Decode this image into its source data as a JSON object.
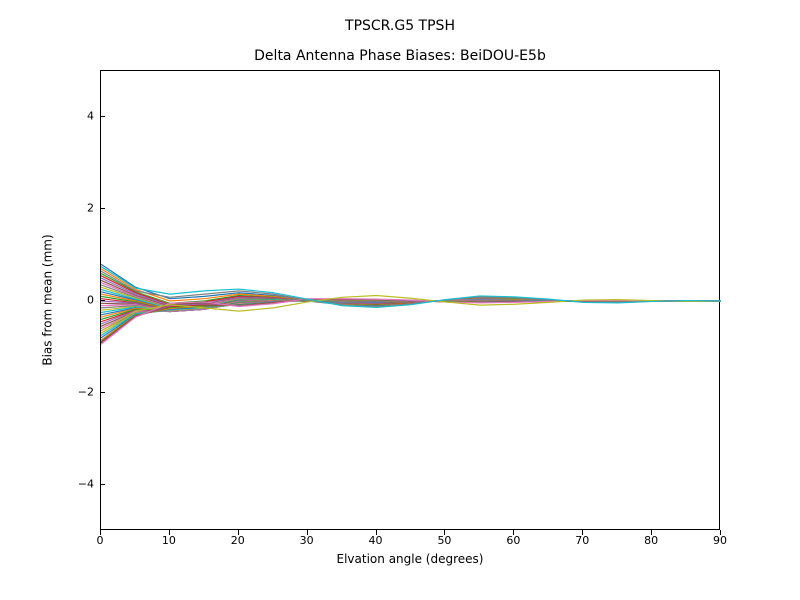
{
  "suptitle": "TPSCR.G5        TPSH",
  "chart": {
    "type": "line",
    "title": "Delta Antenna Phase Biases: BeiDOU-E5b",
    "xlabel": "Elvation angle (degrees)",
    "ylabel": "Bias from mean (mm)",
    "xlim": [
      0,
      90
    ],
    "ylim": [
      -5,
      5
    ],
    "xticks": [
      0,
      10,
      20,
      30,
      40,
      50,
      60,
      70,
      80,
      90
    ],
    "yticks": [
      -4,
      -2,
      0,
      2,
      4
    ],
    "background_color": "#ffffff",
    "border_color": "#000000",
    "title_fontsize": 14,
    "label_fontsize": 12,
    "tick_fontsize": 11,
    "line_width": 1.2,
    "x_values": [
      0,
      5,
      10,
      15,
      20,
      25,
      30,
      35,
      40,
      45,
      50,
      55,
      60,
      65,
      70,
      75,
      80,
      85,
      90
    ],
    "series_colors": [
      "#1f77b4",
      "#ff7f0e",
      "#2ca02c",
      "#d62728",
      "#9467bd",
      "#8c564b",
      "#e377c2",
      "#7f7f7f",
      "#bcbd22",
      "#17becf",
      "#1f77b4",
      "#ff7f0e",
      "#2ca02c",
      "#d62728",
      "#9467bd",
      "#8c564b",
      "#e377c2",
      "#7f7f7f",
      "#bcbd22",
      "#17becf",
      "#1f77b4",
      "#ff7f0e",
      "#2ca02c",
      "#d62728",
      "#9467bd",
      "#8c564b",
      "#e377c2",
      "#7f7f7f",
      "#bcbd22",
      "#17becf",
      "#1f77b4",
      "#ff7f0e",
      "#2ca02c",
      "#d62728",
      "#9467bd",
      "#8c564b",
      "#e377c2",
      "#7f7f7f",
      "#bcbd22",
      "#17becf"
    ],
    "series": [
      [
        0.8,
        0.3,
        0.05,
        0.1,
        0.18,
        0.12,
        0.0,
        -0.08,
        -0.1,
        -0.05,
        0.02,
        0.08,
        0.06,
        0.02,
        -0.02,
        -0.03,
        0.0,
        0.01,
        0.0
      ],
      [
        0.7,
        0.25,
        0.0,
        0.05,
        0.15,
        0.1,
        0.0,
        -0.06,
        -0.08,
        -0.04,
        0.02,
        0.06,
        0.05,
        0.02,
        -0.01,
        -0.02,
        0.0,
        0.01,
        0.0
      ],
      [
        0.6,
        0.2,
        -0.05,
        0.0,
        0.12,
        0.08,
        0.0,
        -0.05,
        -0.07,
        -0.03,
        0.01,
        0.05,
        0.04,
        0.01,
        -0.01,
        -0.02,
        0.0,
        0.0,
        0.0
      ],
      [
        0.55,
        0.18,
        -0.08,
        -0.02,
        0.1,
        0.07,
        0.0,
        -0.04,
        -0.06,
        -0.03,
        0.01,
        0.04,
        0.03,
        0.01,
        -0.01,
        -0.01,
        0.0,
        0.0,
        0.0
      ],
      [
        0.5,
        0.15,
        -0.1,
        -0.05,
        0.08,
        0.06,
        0.0,
        -0.04,
        -0.05,
        -0.02,
        0.01,
        0.04,
        0.03,
        0.01,
        -0.01,
        -0.01,
        0.0,
        0.0,
        0.0
      ],
      [
        0.45,
        0.12,
        -0.12,
        -0.07,
        0.06,
        0.05,
        0.0,
        -0.03,
        -0.05,
        -0.02,
        0.01,
        0.03,
        0.03,
        0.01,
        -0.01,
        -0.01,
        0.0,
        0.0,
        0.0
      ],
      [
        0.4,
        0.1,
        -0.14,
        -0.08,
        0.05,
        0.04,
        0.0,
        -0.03,
        -0.04,
        -0.02,
        0.01,
        0.03,
        0.02,
        0.01,
        0.0,
        -0.01,
        0.0,
        0.0,
        0.0
      ],
      [
        0.35,
        0.08,
        -0.15,
        -0.1,
        0.04,
        0.04,
        0.0,
        -0.02,
        -0.04,
        -0.02,
        0.0,
        0.02,
        0.02,
        0.01,
        0.0,
        -0.01,
        0.0,
        0.0,
        0.0
      ],
      [
        0.3,
        0.06,
        -0.16,
        -0.11,
        0.03,
        0.03,
        0.0,
        -0.02,
        -0.03,
        -0.01,
        0.0,
        0.02,
        0.02,
        0.0,
        0.0,
        0.0,
        0.0,
        0.0,
        0.0
      ],
      [
        0.25,
        0.04,
        -0.17,
        -0.12,
        0.02,
        0.03,
        0.0,
        -0.02,
        -0.03,
        -0.01,
        0.0,
        0.02,
        0.01,
        0.0,
        0.0,
        0.0,
        0.0,
        0.0,
        0.0
      ],
      [
        0.2,
        0.02,
        -0.18,
        -0.13,
        0.02,
        0.02,
        0.0,
        -0.02,
        -0.03,
        -0.01,
        0.0,
        0.02,
        0.01,
        0.0,
        0.0,
        0.0,
        0.0,
        0.0,
        0.0
      ],
      [
        0.15,
        0.0,
        -0.19,
        -0.14,
        0.01,
        0.02,
        0.0,
        -0.01,
        -0.02,
        -0.01,
        0.0,
        0.01,
        0.01,
        0.0,
        0.0,
        0.0,
        0.0,
        0.0,
        0.0
      ],
      [
        0.1,
        -0.02,
        -0.2,
        -0.15,
        0.01,
        0.02,
        0.0,
        -0.01,
        -0.02,
        -0.01,
        0.0,
        0.01,
        0.01,
        0.0,
        0.0,
        0.0,
        0.0,
        0.0,
        0.0
      ],
      [
        0.05,
        -0.04,
        -0.2,
        -0.15,
        0.0,
        0.01,
        0.0,
        -0.01,
        -0.02,
        -0.01,
        0.0,
        0.01,
        0.01,
        0.0,
        0.0,
        0.0,
        0.0,
        0.0,
        0.0
      ],
      [
        0.0,
        -0.05,
        -0.21,
        -0.16,
        0.0,
        0.01,
        0.0,
        -0.01,
        -0.02,
        0.0,
        0.0,
        0.01,
        0.01,
        0.0,
        0.0,
        0.0,
        0.0,
        0.0,
        0.0
      ],
      [
        -0.05,
        -0.07,
        -0.21,
        -0.16,
        -0.01,
        0.01,
        0.0,
        -0.01,
        -0.01,
        0.0,
        0.0,
        0.01,
        0.0,
        0.0,
        0.0,
        0.0,
        0.0,
        0.0,
        0.0
      ],
      [
        -0.1,
        -0.08,
        -0.22,
        -0.17,
        -0.01,
        0.01,
        0.0,
        -0.01,
        -0.01,
        0.0,
        0.0,
        0.01,
        0.0,
        0.0,
        0.0,
        0.0,
        0.0,
        0.0,
        0.0
      ],
      [
        -0.15,
        -0.1,
        -0.22,
        -0.17,
        -0.02,
        0.0,
        0.0,
        0.0,
        -0.01,
        0.0,
        0.0,
        0.0,
        0.0,
        0.0,
        0.0,
        0.0,
        0.0,
        0.0,
        0.0
      ],
      [
        -0.2,
        -0.12,
        -0.22,
        -0.17,
        -0.02,
        0.0,
        0.0,
        0.0,
        -0.01,
        0.0,
        0.0,
        0.0,
        0.0,
        0.0,
        0.0,
        0.0,
        0.0,
        0.0,
        0.0
      ],
      [
        -0.25,
        -0.13,
        -0.23,
        -0.18,
        -0.03,
        0.0,
        0.0,
        0.0,
        -0.01,
        0.0,
        0.0,
        0.0,
        0.0,
        0.0,
        0.0,
        0.0,
        0.0,
        0.0,
        0.0
      ],
      [
        -0.3,
        -0.15,
        -0.23,
        -0.18,
        -0.03,
        0.0,
        0.0,
        0.0,
        -0.01,
        0.0,
        0.0,
        0.0,
        0.0,
        0.0,
        0.0,
        0.0,
        0.0,
        0.0,
        0.0
      ],
      [
        -0.35,
        -0.16,
        -0.23,
        -0.18,
        -0.04,
        0.0,
        0.01,
        0.0,
        0.0,
        0.0,
        0.0,
        0.0,
        0.0,
        0.0,
        0.0,
        0.0,
        0.0,
        0.0,
        0.0
      ],
      [
        -0.4,
        -0.18,
        -0.23,
        -0.18,
        -0.04,
        -0.01,
        0.01,
        0.0,
        0.0,
        0.0,
        0.0,
        0.0,
        0.0,
        0.0,
        0.0,
        0.0,
        0.0,
        0.0,
        0.0
      ],
      [
        -0.45,
        -0.2,
        -0.23,
        -0.18,
        -0.05,
        -0.01,
        0.01,
        0.01,
        0.0,
        0.0,
        0.0,
        0.0,
        0.0,
        0.0,
        0.0,
        0.0,
        0.0,
        0.0,
        0.0
      ],
      [
        -0.5,
        -0.21,
        -0.23,
        -0.18,
        -0.05,
        -0.01,
        0.01,
        0.01,
        0.0,
        0.0,
        0.0,
        0.0,
        0.0,
        0.0,
        0.0,
        0.0,
        0.0,
        0.0,
        0.0
      ],
      [
        -0.55,
        -0.23,
        -0.22,
        -0.17,
        -0.06,
        -0.02,
        0.01,
        0.01,
        0.01,
        0.0,
        0.0,
        -0.01,
        0.0,
        0.0,
        0.0,
        0.0,
        0.0,
        0.0,
        0.0
      ],
      [
        -0.6,
        -0.24,
        -0.22,
        -0.17,
        -0.06,
        -0.02,
        0.02,
        0.01,
        0.01,
        0.0,
        0.0,
        -0.01,
        -0.01,
        0.0,
        0.0,
        0.0,
        0.0,
        0.0,
        0.0
      ],
      [
        -0.65,
        -0.26,
        -0.21,
        -0.16,
        -0.07,
        -0.02,
        0.02,
        0.02,
        0.01,
        0.0,
        -0.01,
        -0.01,
        -0.01,
        0.0,
        0.0,
        0.0,
        0.0,
        0.0,
        0.0
      ],
      [
        -0.7,
        -0.27,
        -0.2,
        -0.15,
        -0.07,
        -0.03,
        0.02,
        0.02,
        0.01,
        0.01,
        -0.01,
        -0.01,
        -0.01,
        0.0,
        0.0,
        0.0,
        0.0,
        0.0,
        0.0
      ],
      [
        -0.75,
        -0.28,
        -0.19,
        -0.14,
        -0.08,
        -0.03,
        0.02,
        0.02,
        0.02,
        0.01,
        -0.01,
        -0.02,
        -0.01,
        0.0,
        0.0,
        0.0,
        0.0,
        0.0,
        0.0
      ],
      [
        -0.8,
        -0.3,
        -0.18,
        -0.13,
        -0.08,
        -0.03,
        0.03,
        0.03,
        0.02,
        0.01,
        -0.01,
        -0.02,
        -0.01,
        -0.01,
        0.0,
        0.0,
        0.0,
        0.0,
        0.0
      ],
      [
        -0.85,
        -0.31,
        -0.16,
        -0.11,
        -0.09,
        -0.04,
        0.03,
        0.03,
        0.02,
        0.01,
        -0.01,
        -0.02,
        -0.02,
        -0.01,
        0.0,
        0.0,
        0.0,
        0.0,
        0.0
      ],
      [
        -0.88,
        -0.32,
        -0.14,
        -0.1,
        -0.09,
        -0.04,
        0.03,
        0.03,
        0.02,
        0.01,
        -0.01,
        -0.02,
        -0.02,
        -0.01,
        0.0,
        0.0,
        0.0,
        0.0,
        0.0
      ],
      [
        -0.9,
        -0.33,
        -0.12,
        -0.08,
        -0.1,
        -0.04,
        0.04,
        0.03,
        0.03,
        0.01,
        -0.02,
        -0.03,
        -0.02,
        -0.01,
        0.0,
        0.01,
        0.0,
        0.0,
        0.0
      ],
      [
        -0.92,
        -0.34,
        -0.1,
        -0.06,
        -0.1,
        -0.05,
        0.04,
        0.04,
        0.03,
        0.01,
        -0.02,
        -0.03,
        -0.02,
        -0.01,
        0.01,
        0.01,
        0.0,
        0.0,
        0.0
      ],
      [
        -0.93,
        -0.34,
        -0.08,
        -0.04,
        -0.11,
        -0.05,
        0.04,
        0.04,
        0.03,
        0.02,
        -0.02,
        -0.03,
        -0.02,
        -0.01,
        0.01,
        0.01,
        0.0,
        0.0,
        0.0
      ],
      [
        -0.94,
        -0.35,
        -0.05,
        -0.02,
        -0.12,
        -0.06,
        0.05,
        0.05,
        0.04,
        0.02,
        -0.02,
        -0.04,
        -0.03,
        -0.01,
        0.01,
        0.01,
        0.0,
        0.0,
        0.0
      ],
      [
        0.65,
        0.22,
        0.08,
        0.15,
        0.22,
        0.15,
        0.02,
        -0.08,
        -0.12,
        -0.06,
        0.02,
        0.09,
        0.07,
        0.03,
        -0.02,
        -0.03,
        -0.01,
        0.01,
        0.0
      ],
      [
        -0.65,
        -0.22,
        -0.08,
        -0.15,
        -0.22,
        -0.15,
        -0.02,
        0.08,
        0.12,
        0.06,
        -0.02,
        -0.09,
        -0.07,
        -0.03,
        0.02,
        0.03,
        0.01,
        -0.01,
        0.0
      ],
      [
        0.75,
        0.28,
        0.15,
        0.22,
        0.26,
        0.18,
        0.04,
        -0.1,
        -0.14,
        -0.08,
        0.03,
        0.11,
        0.09,
        0.04,
        -0.03,
        -0.04,
        -0.01,
        0.01,
        0.0
      ]
    ]
  }
}
